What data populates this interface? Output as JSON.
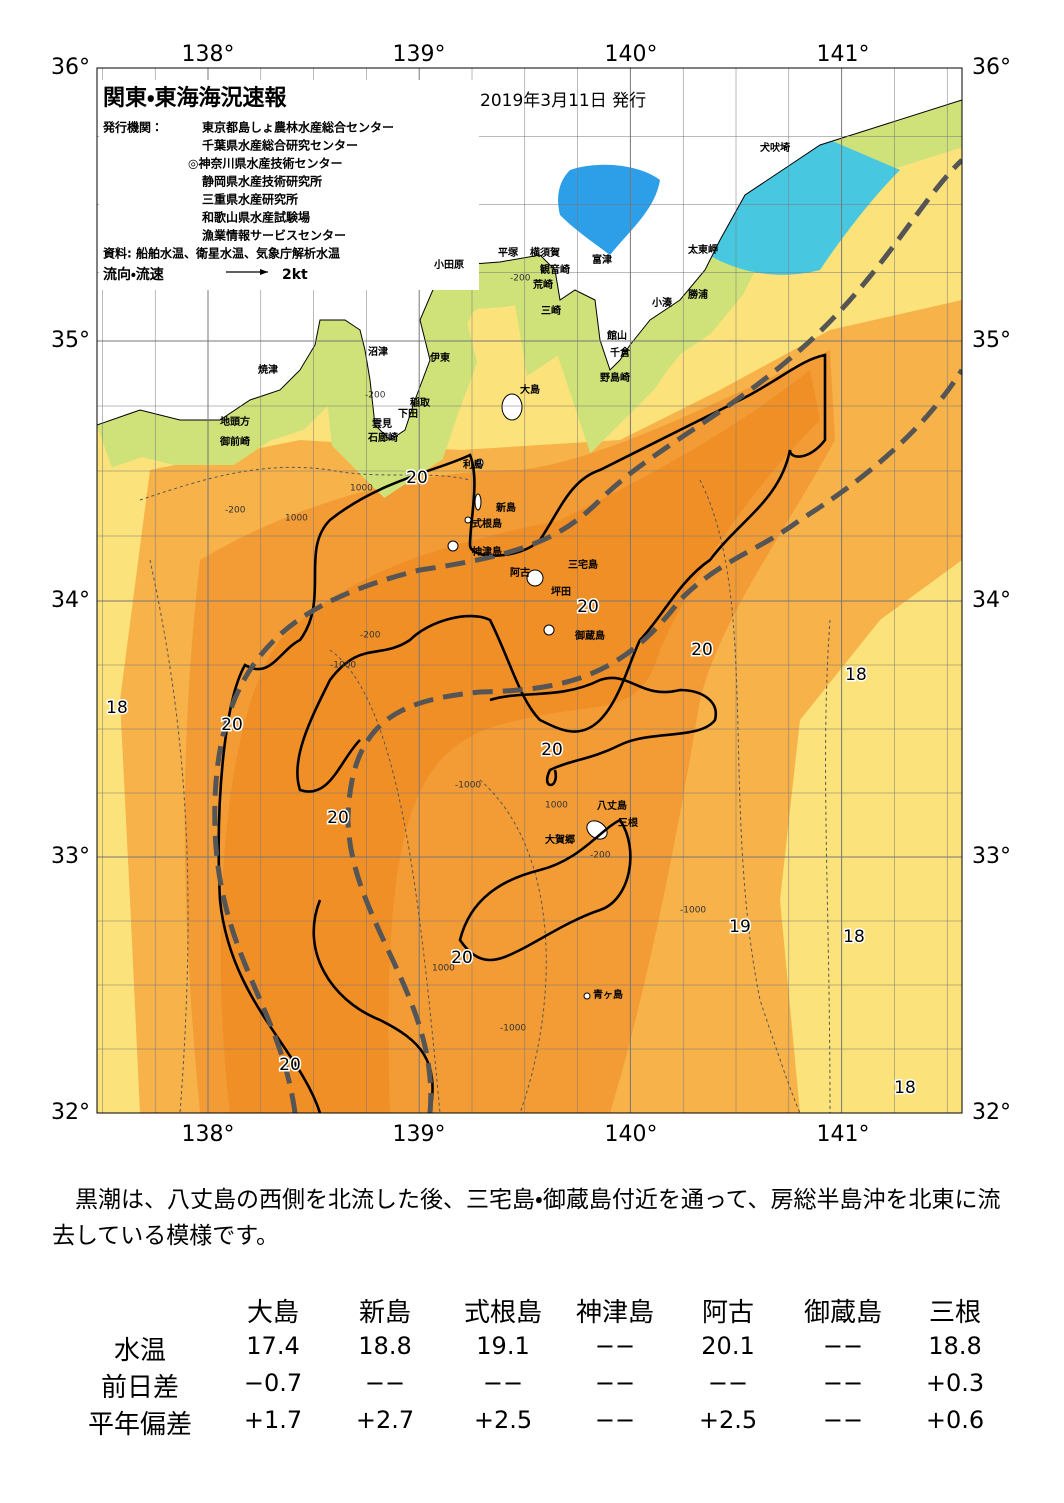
{
  "header": {
    "title": "関東・東海海況速報",
    "date": "2019年3月11日 発行",
    "issuer_label": "発行機関：",
    "issuers": [
      "東京都島しょ農林水産総合センター",
      "千葉県水産総合研究センター",
      "◎神奈川県水産技術センター",
      "静岡県水産技術研究所",
      "三重県水産研究所",
      "和歌山県水産試験場",
      "漁業情報サービスセンター"
    ],
    "source": "資料: 船舶水温、衛星水温、気象庁解析水温",
    "legend_label": "流向・流速",
    "legend_speed": "2kt"
  },
  "map": {
    "lat_labels": [
      "36°",
      "35°",
      "34°",
      "33°",
      "32°"
    ],
    "lon_labels": [
      "138°",
      "139°",
      "140°",
      "141°"
    ],
    "place_names": [
      "犬吠埼",
      "太東岬",
      "勝浦",
      "小湊",
      "館山",
      "千倉",
      "野島崎",
      "富津",
      "横須賀",
      "観音崎",
      "荒崎",
      "三崎",
      "平塚",
      "小田原",
      "沼津",
      "伊東",
      "焼津",
      "稲取",
      "下田",
      "雲見",
      "石廊崎",
      "地頭方",
      "御前崎",
      "大島",
      "利島",
      "新島",
      "式根島",
      "神津島",
      "三宅島",
      "阿古",
      "坪田",
      "御蔵島",
      "八丈島",
      "三根",
      "大賀郷",
      "青ヶ島"
    ],
    "contour_labels": [
      "20",
      "20",
      "20",
      "20",
      "20",
      "20",
      "20",
      "20",
      "18",
      "18",
      "18",
      "18",
      "19"
    ],
    "depth_labels": [
      "-200",
      "-200",
      "-200",
      "-200",
      "-1000",
      "-1000",
      "1000",
      "1000",
      "1000",
      "1000",
      "-1000",
      "-1000",
      "-200"
    ]
  },
  "summary": "黒潮は、八丈島の西側を北流した後、三宅島・御蔵島付近を通って、房総半島沖を北東に流去している模様です。",
  "table": {
    "columns": [
      "大島",
      "新島",
      "式根島",
      "神津島",
      "阿古",
      "御蔵島",
      "三根"
    ],
    "rows": [
      {
        "label": "水温",
        "cells": [
          "17.4",
          "18.8",
          "19.1",
          "−−",
          "20.1",
          "−−",
          "18.8"
        ]
      },
      {
        "label": "前日差",
        "cells": [
          "−0.7",
          "−−",
          "−−",
          "−−",
          "−−",
          "−−",
          "+0.3"
        ]
      },
      {
        "label": "平年偏差",
        "cells": [
          "+1.7",
          "+2.7",
          "+2.5",
          "−−",
          "+2.5",
          "−−",
          "+0.6"
        ]
      }
    ]
  }
}
